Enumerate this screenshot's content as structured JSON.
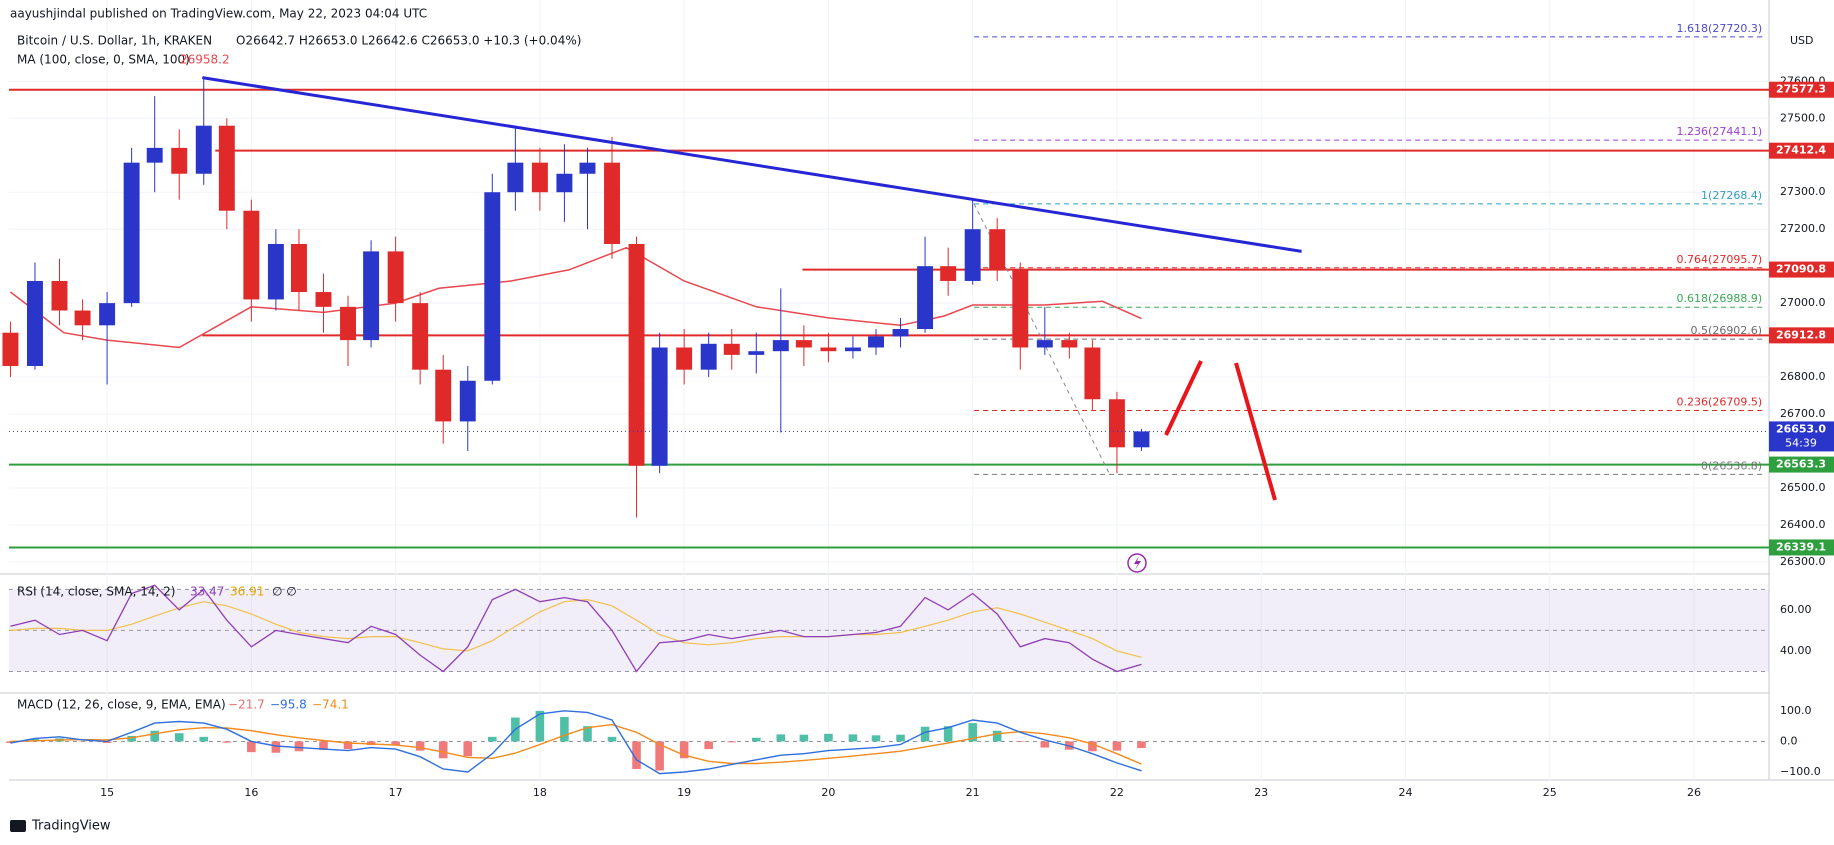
{
  "header": {
    "publisher": "aayushjindal published on TradingView.com, May 22, 2023 04:04 UTC",
    "footer": "TradingView"
  },
  "chart_data": {
    "type": "candlestick",
    "title": "Bitcoin / U.S. Dollar, 1h, KRAKEN",
    "ohlc_text": "O26642.7 H26653.0 L26642.6 C26653.0 +10.3 (+0.04%)",
    "currency": "USD",
    "xlim": [
      14.32,
      26.52
    ],
    "xticks": [
      15,
      16,
      17,
      18,
      19,
      20,
      21,
      22,
      23,
      24,
      25,
      26
    ],
    "ylim": [
      26270,
      27820
    ],
    "yticks": [
      {
        "value": 27600,
        "label": "27600.0"
      },
      {
        "value": 27500,
        "label": "27500.0"
      },
      {
        "value": 27300,
        "label": "27300.0"
      },
      {
        "value": 27200,
        "label": "27200.0"
      },
      {
        "value": 27000,
        "label": "27000.0"
      },
      {
        "value": 26800,
        "label": "26800.0"
      },
      {
        "value": 26700,
        "label": "26700.0"
      },
      {
        "value": 26500,
        "label": "26500.0"
      },
      {
        "value": 26400,
        "label": "26400.0"
      },
      {
        "value": 26300,
        "label": "26300.0"
      }
    ],
    "grid": true,
    "up_color": "#2a36c9",
    "down_color": "#e02a2a",
    "x": [
      14.33,
      14.5,
      14.67,
      14.83,
      15.0,
      15.17,
      15.33,
      15.5,
      15.67,
      15.83,
      16.0,
      16.17,
      16.33,
      16.5,
      16.67,
      16.83,
      17.0,
      17.17,
      17.33,
      17.5,
      17.67,
      17.83,
      18.0,
      18.17,
      18.33,
      18.5,
      18.67,
      18.83,
      19.0,
      19.17,
      19.33,
      19.5,
      19.67,
      19.83,
      20.0,
      20.17,
      20.33,
      20.5,
      20.67,
      20.83,
      21.0,
      21.17,
      21.33,
      21.5,
      21.67,
      21.83,
      22.0,
      22.17
    ],
    "candles": [
      [
        26920,
        26950,
        26800,
        26830
      ],
      [
        26830,
        27110,
        26820,
        27060
      ],
      [
        27060,
        27120,
        26940,
        26980
      ],
      [
        26980,
        27010,
        26900,
        26940
      ],
      [
        26940,
        27030,
        26780,
        27000
      ],
      [
        27000,
        27420,
        26990,
        27380
      ],
      [
        27380,
        27560,
        27300,
        27420
      ],
      [
        27420,
        27470,
        27280,
        27350
      ],
      [
        27350,
        27610,
        27320,
        27480
      ],
      [
        27480,
        27500,
        27200,
        27250
      ],
      [
        27250,
        27280,
        26950,
        27010
      ],
      [
        27010,
        27200,
        26980,
        27160
      ],
      [
        27160,
        27200,
        26980,
        27030
      ],
      [
        27030,
        27080,
        26920,
        26990
      ],
      [
        26990,
        27020,
        26830,
        26900
      ],
      [
        26900,
        27170,
        26880,
        27140
      ],
      [
        27140,
        27180,
        26950,
        27000
      ],
      [
        27000,
        27030,
        26780,
        26820
      ],
      [
        26820,
        26860,
        26620,
        26680
      ],
      [
        26680,
        26830,
        26600,
        26790
      ],
      [
        26790,
        27350,
        26780,
        27300
      ],
      [
        27300,
        27480,
        27250,
        27380
      ],
      [
        27380,
        27420,
        27250,
        27300
      ],
      [
        27300,
        27430,
        27220,
        27350
      ],
      [
        27350,
        27420,
        27200,
        27380
      ],
      [
        27380,
        27450,
        27120,
        27160
      ],
      [
        27160,
        27180,
        26420,
        26560
      ],
      [
        26560,
        26920,
        26540,
        26880
      ],
      [
        26880,
        26930,
        26780,
        26820
      ],
      [
        26820,
        26920,
        26800,
        26890
      ],
      [
        26890,
        26930,
        26820,
        26860
      ],
      [
        26860,
        26920,
        26810,
        26870
      ],
      [
        26870,
        27040,
        26650,
        26900
      ],
      [
        26900,
        26940,
        26830,
        26880
      ],
      [
        26880,
        26920,
        26840,
        26870
      ],
      [
        26870,
        26910,
        26850,
        26880
      ],
      [
        26880,
        26930,
        26860,
        26910
      ],
      [
        26910,
        26960,
        26880,
        26930
      ],
      [
        26930,
        27180,
        26920,
        27100
      ],
      [
        27100,
        27150,
        27020,
        27060
      ],
      [
        27060,
        27280,
        27050,
        27200
      ],
      [
        27200,
        27230,
        27060,
        27090
      ],
      [
        27090,
        27110,
        26820,
        26880
      ],
      [
        26880,
        26990,
        26860,
        26900
      ],
      [
        26900,
        26920,
        26850,
        26880
      ],
      [
        26880,
        26900,
        26710,
        26740
      ],
      [
        26740,
        26760,
        26540,
        26610
      ],
      [
        26610,
        26660,
        26600,
        26653
      ]
    ],
    "ma": {
      "name": "MA (100, close, 0, SMA, 100)",
      "last": "26958.2",
      "color": "#e8474f",
      "x": [
        14.33,
        14.7,
        15.0,
        15.5,
        16.0,
        16.5,
        17.0,
        17.3,
        17.8,
        18.2,
        18.6,
        19.0,
        19.5,
        20.0,
        20.5,
        20.8,
        21.0,
        21.5,
        21.9,
        22.17
      ],
      "values": [
        27030,
        26920,
        26900,
        26880,
        26990,
        26975,
        27000,
        27040,
        27060,
        27090,
        27150,
        27060,
        26990,
        26960,
        26940,
        26965,
        26995,
        26995,
        27005,
        26958.2
      ]
    },
    "levels": [
      {
        "value": 27577.3,
        "color": "#e02a2a",
        "from": 14.32
      },
      {
        "value": 27412.4,
        "color": "#e02a2a",
        "from": 15.75
      },
      {
        "value": 27090.8,
        "color": "#e02a2a",
        "from": 19.82
      },
      {
        "value": 26912.8,
        "color": "#e02a2a",
        "from": 15.66
      },
      {
        "value": 26563.3,
        "color": "#2e9e3e",
        "from": 14.32
      },
      {
        "value": 26339.1,
        "color": "#2e9e3e",
        "from": 14.32
      }
    ],
    "trendline": {
      "x": [
        15.66,
        23.28
      ],
      "y": [
        27610,
        27140
      ],
      "color": "#2626d4"
    },
    "fib": {
      "from": 21.01,
      "to": 26.5,
      "dashline": [
        21.01,
        27268.4,
        21.95,
        26536.8
      ],
      "levels": [
        {
          "value": 27720.3,
          "label": "1.618(27720.3)",
          "color": "#4a4ad0"
        },
        {
          "value": 27441.1,
          "label": "1.236(27441.1)",
          "color": "#9c3fd0"
        },
        {
          "value": 27268.4,
          "label": "1(27268.4)",
          "color": "#2f9fc2"
        },
        {
          "value": 27095.7,
          "label": "0.764(27095.7)",
          "color": "#e02a2a"
        },
        {
          "value": 26988.9,
          "label": "0.618(26988.9)",
          "color": "#3aa856"
        },
        {
          "value": 26902.6,
          "label": "0.5(26902.6)",
          "color": "#6b6b6b"
        },
        {
          "value": 26709.5,
          "label": "0.236(26709.5)",
          "color": "#e02a2a"
        },
        {
          "value": 26536.8,
          "label": "0(26536.8)",
          "color": "#777777"
        }
      ]
    },
    "last_price": {
      "value": 26653,
      "label": "26653.0",
      "countdown": "54:39",
      "color": "#2a36c9"
    },
    "rsi": {
      "name": "RSI (14, close, SMA, 14, 2)",
      "last": "33.47",
      "ma_last": "36.91",
      "extra": "∅ ∅",
      "ylim": [
        20,
        77
      ],
      "band": [
        30,
        70
      ],
      "mid": 50,
      "yticks": [
        {
          "value": 60,
          "label": "60.00"
        },
        {
          "value": 40,
          "label": "40.00"
        }
      ],
      "color": "#8e3fb5",
      "ma_color": "#f2c04a",
      "values": [
        52,
        55,
        48,
        50,
        45,
        68,
        72,
        60,
        70,
        55,
        42,
        50,
        48,
        46,
        44,
        52,
        48,
        38,
        30,
        42,
        65,
        70,
        64,
        66,
        64,
        50,
        30,
        44,
        45,
        48,
        46,
        48,
        50,
        47,
        47,
        48,
        49,
        52,
        66,
        60,
        68,
        58,
        42,
        46,
        44,
        36,
        30,
        33.47
      ],
      "ma": [
        50,
        51,
        51,
        50,
        50,
        53,
        57,
        61,
        64,
        62,
        58,
        53,
        49,
        47,
        46,
        47,
        47,
        44,
        41,
        40,
        45,
        52,
        59,
        64,
        65,
        62,
        55,
        48,
        44,
        43,
        44,
        46,
        47,
        47,
        47,
        48,
        48,
        49,
        52,
        55,
        59,
        61,
        58,
        54,
        50,
        46,
        40,
        36.91
      ]
    },
    "macd": {
      "name": "MACD (12, 26, close, 9, EMA, EMA)",
      "hist_last": "−21.7",
      "macd_last": "−95.8",
      "signal_last": "−74.1",
      "ylim": [
        -126,
        155
      ],
      "yticks": [
        {
          "value": 100,
          "label": "100.0"
        },
        {
          "value": 0,
          "label": "0.0"
        },
        {
          "value": -100,
          "label": "−100.0"
        }
      ],
      "macd_color": "#2f6fe0",
      "signal_color": "#f28a1c",
      "pos_color": "#4fbfa8",
      "neg_color": "#f07a7a",
      "macd": [
        -5,
        10,
        15,
        5,
        0,
        30,
        60,
        65,
        60,
        40,
        0,
        -15,
        -20,
        -25,
        -30,
        -20,
        -25,
        -50,
        -90,
        -100,
        -40,
        40,
        90,
        100,
        95,
        70,
        -60,
        -105,
        -100,
        -90,
        -75,
        -60,
        -45,
        -40,
        -30,
        -25,
        -20,
        -10,
        30,
        45,
        70,
        60,
        30,
        5,
        -15,
        -40,
        -70,
        -95.8
      ],
      "signal": [
        0,
        2,
        5,
        6,
        5,
        12,
        25,
        38,
        45,
        44,
        35,
        22,
        12,
        3,
        -5,
        -8,
        -12,
        -20,
        -35,
        -52,
        -55,
        -38,
        -10,
        20,
        45,
        55,
        30,
        -10,
        -45,
        -65,
        -72,
        -72,
        -68,
        -62,
        -55,
        -48,
        -40,
        -32,
        -18,
        -5,
        10,
        25,
        32,
        25,
        12,
        -8,
        -40,
        -74.1
      ],
      "histogram": [
        -5,
        8,
        10,
        -1,
        -5,
        18,
        35,
        27,
        15,
        -4,
        -35,
        -37,
        -32,
        -28,
        -25,
        -12,
        -13,
        -30,
        -55,
        -48,
        15,
        78,
        100,
        80,
        50,
        15,
        -90,
        -95,
        -55,
        -25,
        -3,
        12,
        23,
        22,
        25,
        23,
        20,
        22,
        48,
        50,
        60,
        35,
        -2,
        -20,
        -27,
        -32,
        -30,
        -21.7
      ]
    }
  }
}
